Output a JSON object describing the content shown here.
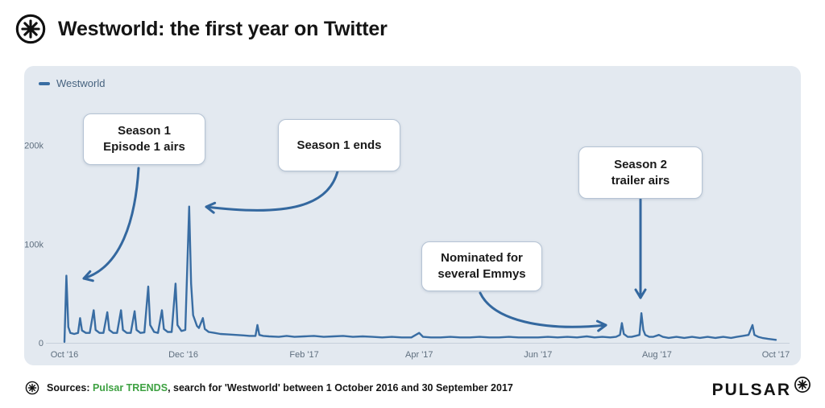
{
  "header": {
    "title": "Westworld: the first year on Twitter"
  },
  "legend": {
    "label": "Westworld",
    "color": "#396da3"
  },
  "callouts": {
    "s1e1": {
      "line1": "Season 1",
      "line2": "Episode 1 airs"
    },
    "s1end": {
      "line1": "Season 1 ends",
      "line2": ""
    },
    "emmys": {
      "line1": "Nominated for",
      "line2": "several Emmys"
    },
    "s2trailer": {
      "line1": "Season 2",
      "line2": "trailer airs"
    }
  },
  "footer": {
    "sources_prefix": "Sources: ",
    "sources_link": "Pulsar TRENDS",
    "sources_rest": ", search for 'Westworld' between 1 October 2016 and 30 September 2017",
    "brand": "PULSAR"
  },
  "colors": {
    "line": "#396da3",
    "arrow": "#34689f",
    "panel_bg": "#e3e9f0",
    "tick_text": "#5e6e7e",
    "axis_line": "#c7d0db",
    "link_green": "#3ea142"
  },
  "chart_data": {
    "type": "line",
    "title": "Westworld: the first year on Twitter",
    "xlabel": "",
    "ylabel": "",
    "grid": false,
    "legend_position": "top-left",
    "x_unit": "days since 1 Oct 2016",
    "x_ticks": [
      "Oct '16",
      "Dec '16",
      "Feb '17",
      "Apr '17",
      "Jun '17",
      "Aug '17",
      "Oct '17"
    ],
    "x_tick_days": [
      0,
      61,
      123,
      182,
      243,
      304,
      365
    ],
    "y_ticks": [
      [
        0,
        "0"
      ],
      [
        100000,
        "100k"
      ],
      [
        200000,
        "200k"
      ]
    ],
    "xlim_days": [
      0,
      365
    ],
    "ylim": [
      0,
      240000
    ],
    "annotations": [
      {
        "label": "Season 1 Episode 1 airs",
        "day": 1,
        "value": 68000
      },
      {
        "label": "Season 1 ends",
        "day": 64,
        "value": 138000
      },
      {
        "label": "Nominated for several Emmys",
        "day": 286,
        "value": 20000
      },
      {
        "label": "Season 2 trailer airs",
        "day": 296,
        "value": 30000
      }
    ],
    "series": [
      {
        "name": "Westworld",
        "color": "#396da3",
        "points": [
          [
            0,
            1000
          ],
          [
            1,
            68000
          ],
          [
            2,
            16000
          ],
          [
            3,
            10000
          ],
          [
            5,
            9000
          ],
          [
            7,
            10000
          ],
          [
            8,
            25000
          ],
          [
            9,
            12500
          ],
          [
            11,
            10000
          ],
          [
            13,
            10000
          ],
          [
            15,
            33000
          ],
          [
            16,
            13000
          ],
          [
            18,
            10000
          ],
          [
            20,
            10000
          ],
          [
            22,
            31000
          ],
          [
            23,
            13000
          ],
          [
            25,
            10000
          ],
          [
            27,
            10000
          ],
          [
            29,
            33000
          ],
          [
            30,
            13000
          ],
          [
            32,
            10000
          ],
          [
            34,
            10000
          ],
          [
            36,
            32000
          ],
          [
            37,
            13000
          ],
          [
            39,
            10000
          ],
          [
            41,
            10500
          ],
          [
            43,
            57000
          ],
          [
            44,
            18000
          ],
          [
            46,
            11000
          ],
          [
            48,
            10000
          ],
          [
            50,
            33000
          ],
          [
            51,
            14000
          ],
          [
            53,
            11000
          ],
          [
            55,
            11000
          ],
          [
            57,
            60000
          ],
          [
            58,
            18000
          ],
          [
            60,
            12000
          ],
          [
            62,
            13000
          ],
          [
            64,
            138000
          ],
          [
            65,
            60000
          ],
          [
            66,
            28000
          ],
          [
            68,
            17000
          ],
          [
            69,
            15000
          ],
          [
            71,
            25000
          ],
          [
            72,
            14000
          ],
          [
            74,
            11000
          ],
          [
            77,
            10000
          ],
          [
            80,
            9000
          ],
          [
            84,
            8500
          ],
          [
            88,
            8000
          ],
          [
            92,
            7500
          ],
          [
            95,
            7000
          ],
          [
            98,
            7000
          ],
          [
            99,
            18000
          ],
          [
            100,
            8000
          ],
          [
            102,
            7000
          ],
          [
            105,
            6500
          ],
          [
            110,
            6000
          ],
          [
            114,
            7000
          ],
          [
            118,
            6000
          ],
          [
            123,
            6500
          ],
          [
            128,
            7000
          ],
          [
            133,
            6000
          ],
          [
            138,
            6500
          ],
          [
            143,
            7000
          ],
          [
            148,
            6000
          ],
          [
            153,
            6500
          ],
          [
            158,
            6000
          ],
          [
            163,
            5500
          ],
          [
            168,
            6000
          ],
          [
            173,
            5500
          ],
          [
            178,
            5500
          ],
          [
            182,
            10000
          ],
          [
            184,
            6000
          ],
          [
            188,
            5500
          ],
          [
            193,
            5500
          ],
          [
            198,
            6000
          ],
          [
            203,
            5500
          ],
          [
            208,
            5500
          ],
          [
            213,
            6000
          ],
          [
            218,
            5500
          ],
          [
            223,
            5500
          ],
          [
            228,
            6000
          ],
          [
            233,
            5500
          ],
          [
            238,
            5500
          ],
          [
            243,
            5500
          ],
          [
            248,
            6000
          ],
          [
            253,
            5500
          ],
          [
            258,
            6000
          ],
          [
            263,
            5500
          ],
          [
            268,
            6500
          ],
          [
            272,
            5500
          ],
          [
            276,
            6000
          ],
          [
            280,
            5500
          ],
          [
            283,
            6000
          ],
          [
            285,
            8000
          ],
          [
            286,
            20000
          ],
          [
            287,
            9000
          ],
          [
            289,
            6000
          ],
          [
            291,
            6000
          ],
          [
            293,
            7000
          ],
          [
            295,
            8000
          ],
          [
            296,
            30000
          ],
          [
            297,
            13000
          ],
          [
            298,
            8000
          ],
          [
            300,
            6000
          ],
          [
            302,
            6000
          ],
          [
            305,
            8000
          ],
          [
            307,
            6000
          ],
          [
            310,
            5000
          ],
          [
            314,
            6000
          ],
          [
            318,
            5000
          ],
          [
            322,
            6000
          ],
          [
            326,
            5000
          ],
          [
            330,
            6000
          ],
          [
            334,
            5000
          ],
          [
            338,
            6000
          ],
          [
            342,
            5000
          ],
          [
            345,
            6000
          ],
          [
            348,
            7000
          ],
          [
            351,
            8000
          ],
          [
            353,
            18000
          ],
          [
            354,
            8000
          ],
          [
            356,
            6000
          ],
          [
            358,
            5000
          ],
          [
            361,
            4000
          ],
          [
            365,
            3000
          ]
        ]
      }
    ]
  }
}
